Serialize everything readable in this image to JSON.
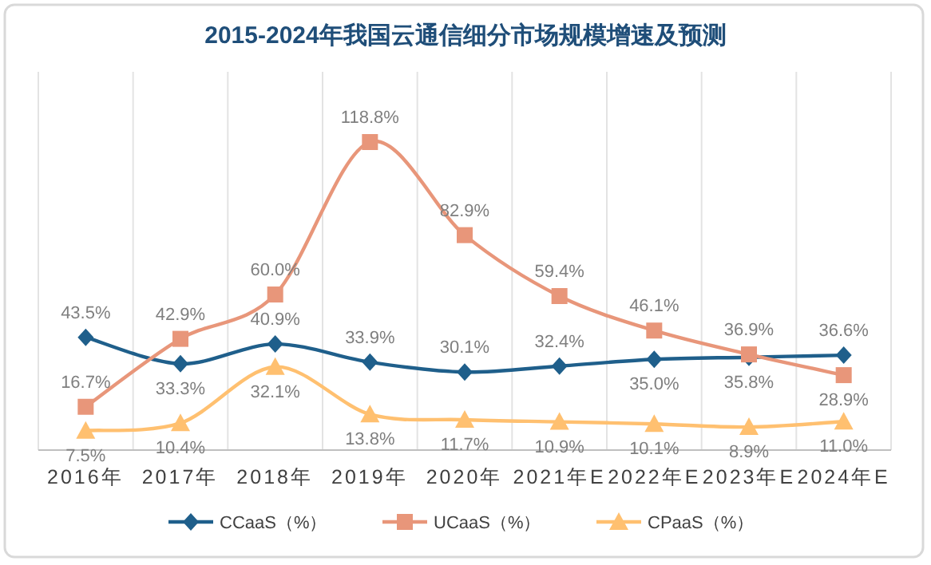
{
  "chart_data": {
    "type": "line",
    "title": "2015-2024年我国云通信细分市场规模增速及预测",
    "categories": [
      "2016年",
      "2017年",
      "2018年",
      "2019年",
      "2020年",
      "2021年E",
      "2022年E",
      "2023年E",
      "2024年E"
    ],
    "series": [
      {
        "name": "CCaaS（%）",
        "color": "#1f5f8b",
        "marker": "diamond",
        "values": [
          43.5,
          33.3,
          40.9,
          33.9,
          30.1,
          32.4,
          35.0,
          35.8,
          36.6
        ],
        "value_labels": [
          "43.5%",
          "33.3%",
          "40.9%",
          "33.9%",
          "30.1%",
          "32.4%",
          "35.0%",
          "35.8%",
          "36.6%"
        ]
      },
      {
        "name": "UCaaS（%）",
        "color": "#e8967a",
        "marker": "square",
        "values": [
          16.7,
          42.9,
          60.0,
          118.8,
          82.9,
          59.4,
          46.1,
          36.9,
          28.9
        ],
        "value_labels": [
          "16.7%",
          "42.9%",
          "60.0%",
          "118.8%",
          "82.9%",
          "59.4%",
          "46.1%",
          "36.9%",
          "28.9%"
        ]
      },
      {
        "name": "CPaaS（%）",
        "color": "#ffc070",
        "marker": "triangle",
        "values": [
          7.5,
          10.4,
          32.1,
          13.8,
          11.7,
          10.9,
          10.1,
          8.9,
          11.0
        ],
        "value_labels": [
          "7.5%",
          "10.4%",
          "32.1%",
          "13.8%",
          "11.7%",
          "10.9%",
          "10.1%",
          "8.9%",
          "11.0%"
        ]
      }
    ],
    "grid": "x",
    "legend": "bottom",
    "line_style": "solid"
  }
}
